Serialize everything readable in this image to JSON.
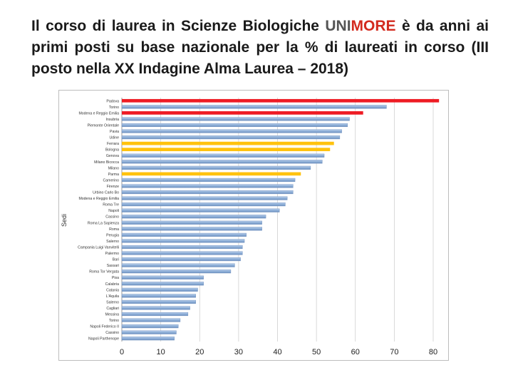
{
  "title": {
    "line1_pre": "Il corso di laurea in Scienze Biologiche ",
    "brand_uni": "UNI",
    "brand_more": "MORE",
    "line1_post": " è da anni ai primi posti su base nazionale per la % di laureati in corso (III posto nella XX Indagine Alma Laurea – 2018)"
  },
  "colors": {
    "bar_default": "#8fb0d8",
    "bar_highlight_red": "#ee1c24",
    "bar_highlight_yellow": "#ffc20e",
    "brand_more": "#d32a1e"
  },
  "chart_data": {
    "type": "bar",
    "orientation": "horizontal",
    "ylabel": "Sedi",
    "xlabel": "",
    "xlim": [
      0,
      80
    ],
    "xticks": [
      0,
      10,
      20,
      30,
      40,
      50,
      60,
      70,
      80
    ],
    "grid": true,
    "categories": [
      "Padova",
      "Torino",
      "Modena e Reggio Emilia",
      "Insubria",
      "Piemonte Orientale",
      "Pavia",
      "Udine",
      "Ferrara",
      "Bologna",
      "Genova",
      "Milano Bicocca",
      "Milano",
      "Parma",
      "Camerino",
      "Firenze",
      "Urbino Carlo Bo",
      "Modena e Reggio Emilia",
      "Roma Tre",
      "Napoli",
      "Cassino",
      "Roma La Sapienza",
      "Roma",
      "Perugia",
      "Salerno",
      "Campania Luigi Vanvitelli",
      "Palermo",
      "Bari",
      "Sassari",
      "Roma Tor Vergata",
      "Pisa",
      "Calabria",
      "Catania",
      "L'Aquila",
      "Salerno",
      "Cagliari",
      "Messina",
      "Torino",
      "Napoli Federico II",
      "Cassino",
      "Napoli Parthenope"
    ],
    "values": [
      81.5,
      68,
      62,
      58.5,
      58,
      56.5,
      56,
      54.5,
      53.5,
      52,
      51.5,
      48.5,
      46,
      44.5,
      44,
      44,
      42.5,
      42,
      40.5,
      37,
      36,
      36,
      32,
      31.5,
      31,
      31,
      30.5,
      29,
      28,
      21,
      21,
      19.5,
      19,
      19,
      17.5,
      17,
      15,
      14.5,
      14,
      13.5
    ],
    "highlight": [
      "red",
      "none",
      "red",
      "none",
      "none",
      "none",
      "none",
      "yellow",
      "yellow",
      "none",
      "none",
      "none",
      "yellow",
      "none",
      "none",
      "none",
      "none",
      "none",
      "none",
      "none",
      "none",
      "none",
      "none",
      "none",
      "none",
      "none",
      "none",
      "none",
      "none",
      "none",
      "none",
      "none",
      "none",
      "none",
      "none",
      "none",
      "none",
      "none",
      "none",
      "none"
    ]
  }
}
